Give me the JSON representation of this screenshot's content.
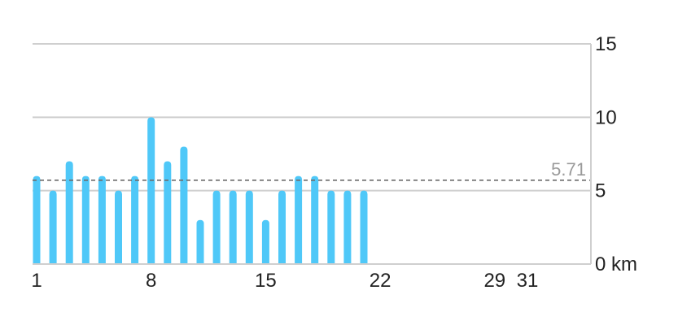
{
  "chart_data": {
    "type": "bar",
    "title": "",
    "xlabel": "",
    "ylabel": "",
    "unit": "km",
    "x": [
      1,
      2,
      3,
      4,
      5,
      6,
      7,
      8,
      9,
      10,
      11,
      12,
      13,
      14,
      15,
      16,
      17,
      18,
      19,
      20,
      21
    ],
    "values": [
      6,
      5,
      7,
      6,
      6,
      5,
      6,
      10,
      7,
      8,
      3,
      5,
      5,
      5,
      3,
      5,
      6,
      6,
      5,
      5,
      5
    ],
    "xlim": [
      1,
      35
    ],
    "ylim": [
      0,
      15
    ],
    "x_ticks": [
      1,
      8,
      15,
      22,
      29,
      31
    ],
    "x_tick_labels": [
      "1",
      "8",
      "15",
      "22",
      "29",
      "31"
    ],
    "y_ticks": [
      0,
      5,
      10,
      15
    ],
    "y_tick_labels": [
      "0 km",
      "5",
      "10",
      "15"
    ],
    "average": 5.71,
    "average_label": "5.71",
    "grid": true,
    "y_axis_side": "right",
    "colors": {
      "bar": "#4FC8F8",
      "grid": "#CFCFCF",
      "average_line": "#6B6B6B",
      "average_label": "#9A9A9A",
      "text": "#222222"
    }
  }
}
